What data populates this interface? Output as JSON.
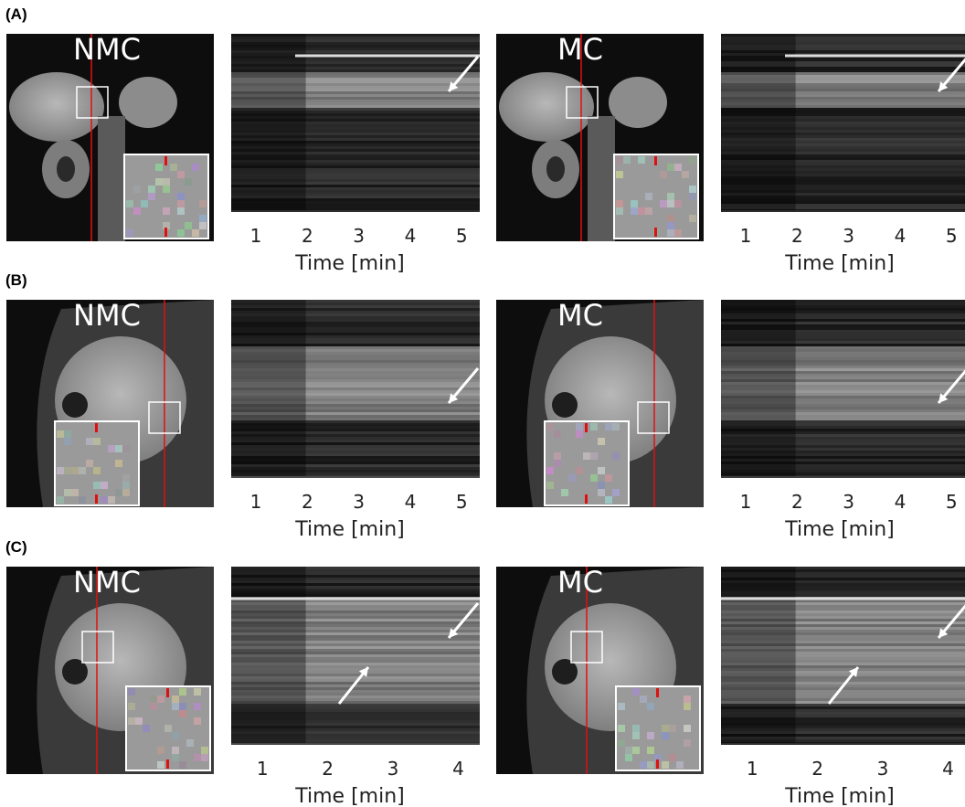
{
  "panels": [
    {
      "label": "(A)",
      "image_labels": [
        "NMC",
        "MC"
      ],
      "x_label": "Time [min]",
      "xticks": [
        1,
        2,
        3,
        4,
        5
      ],
      "xlim": [
        0.52,
        5.35
      ]
    },
    {
      "label": "(B)",
      "image_labels": [
        "NMC",
        "MC"
      ],
      "x_label": "Time [min]",
      "xticks": [
        1,
        2,
        3,
        4,
        5
      ],
      "xlim": [
        0.52,
        5.35
      ]
    },
    {
      "label": "(C)",
      "image_labels": [
        "NMC",
        "MC"
      ],
      "x_label": "Time [min]",
      "xticks": [
        1,
        2,
        3,
        4
      ],
      "xlim": [
        0.52,
        4.33
      ]
    }
  ]
}
